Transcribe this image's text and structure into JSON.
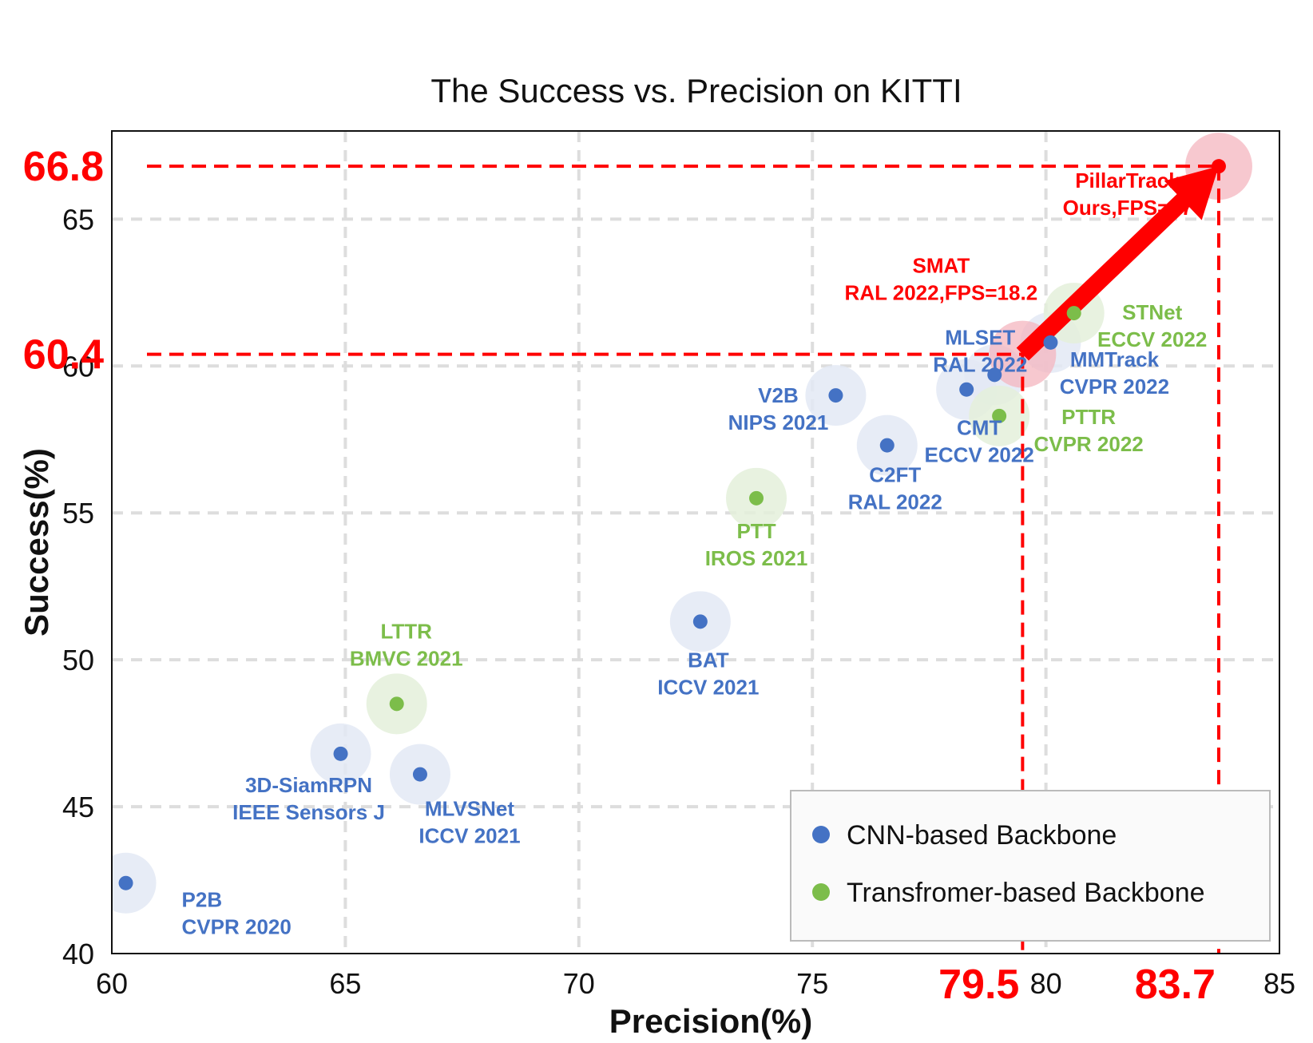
{
  "chart_data": {
    "type": "scatter",
    "title": "The Success vs. Precision on KITTI",
    "xlabel": "Precision(%)",
    "ylabel": "Success(%)",
    "xlim": [
      60,
      85
    ],
    "ylim": [
      40,
      68
    ],
    "xticks": [
      60,
      65,
      70,
      75,
      80,
      85
    ],
    "yticks": [
      40,
      45,
      50,
      55,
      60,
      65
    ],
    "grid": true,
    "legend_position": "bottom-right",
    "colors": {
      "cnn": "#4472c4",
      "transformer": "#7cbd4a",
      "ours": "#ff0000",
      "halo_ours": "#f4b6bf",
      "grid": "#dddddd"
    },
    "series": [
      {
        "name": "CNN-based Backbone",
        "color": "#4472c4",
        "points": [
          {
            "x": 60.3,
            "y": 42.4,
            "label": [
              "P2B",
              "CVPR 2020"
            ]
          },
          {
            "x": 64.9,
            "y": 46.8,
            "label": [
              "3D-SiamRPN",
              "IEEE Sensors J"
            ]
          },
          {
            "x": 66.6,
            "y": 46.1,
            "label": [
              "MLVSNet",
              "ICCV 2021"
            ]
          },
          {
            "x": 72.6,
            "y": 51.3,
            "label": [
              "BAT",
              "ICCV 2021"
            ]
          },
          {
            "x": 75.5,
            "y": 59.0,
            "label": [
              "V2B",
              "NIPS 2021"
            ]
          },
          {
            "x": 76.6,
            "y": 57.3,
            "label": [
              "C2FT",
              "RAL 2022"
            ]
          },
          {
            "x": 78.3,
            "y": 59.2,
            "label": [
              "CMT",
              "ECCV 2022"
            ]
          },
          {
            "x": 78.9,
            "y": 59.7,
            "label": [
              "MLSET",
              "RAL 2022"
            ]
          },
          {
            "x": 80.1,
            "y": 60.8,
            "label": [
              "MMTrack",
              "CVPR 2022"
            ]
          }
        ]
      },
      {
        "name": "Transfromer-based Backbone",
        "color": "#7cbd4a",
        "points": [
          {
            "x": 66.1,
            "y": 48.5,
            "label": [
              "LTTR",
              "BMVC 2021"
            ]
          },
          {
            "x": 73.8,
            "y": 55.5,
            "label": [
              "PTT",
              "IROS 2021"
            ]
          },
          {
            "x": 79.0,
            "y": 58.3,
            "label": [
              "PTTR",
              "CVPR 2022"
            ]
          },
          {
            "x": 80.6,
            "y": 61.8,
            "label": [
              "STNet",
              "ECCV 2022"
            ]
          }
        ]
      }
    ],
    "highlighted": [
      {
        "x": 79.5,
        "y": 60.4,
        "label": [
          "SMAT",
          "RAL 2022,FPS=18.2"
        ],
        "show_dot": false
      },
      {
        "x": 83.7,
        "y": 66.8,
        "label": [
          "PillarTrack",
          "Ours,FPS=27"
        ],
        "show_dot": true
      }
    ],
    "reference_values": {
      "x_a": "79.5",
      "x_b": "83.7",
      "y_a": "60.4",
      "y_b": "66.8"
    },
    "legend": [
      {
        "label": "CNN-based Backbone",
        "color": "#4472c4"
      },
      {
        "label": "Transfromer-based Backbone",
        "color": "#7cbd4a"
      }
    ]
  }
}
